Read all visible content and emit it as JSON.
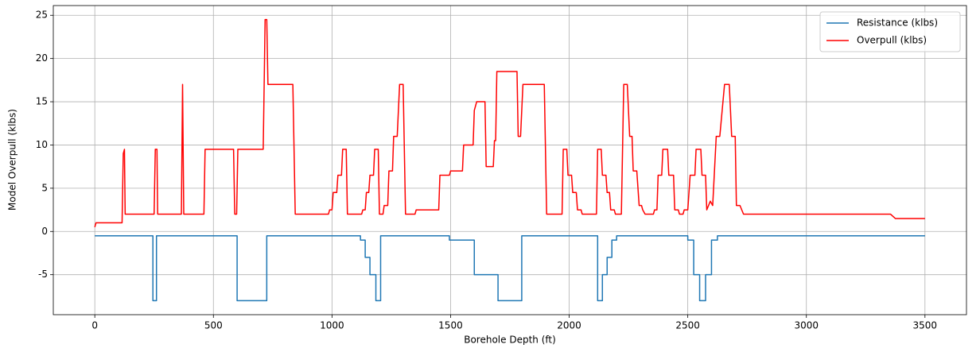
{
  "chart_data": {
    "type": "line",
    "xlabel": "Borehole Depth (ft)",
    "ylabel": "Model Overpull (klbs)",
    "xlim": [
      -175,
      3675
    ],
    "ylim": [
      -9.625,
      26.125
    ],
    "xticks": [
      0,
      500,
      1000,
      1500,
      2000,
      2500,
      3000,
      3500
    ],
    "yticks": [
      -5,
      0,
      5,
      10,
      15,
      20,
      25
    ],
    "grid": true,
    "legend": "upper right",
    "series": [
      {
        "name": "Resistance (klbs)",
        "color": "#1f77b4",
        "x": [
          0,
          245,
          245,
          260,
          260,
          600,
          600,
          725,
          725,
          1120,
          1120,
          1140,
          1140,
          1160,
          1160,
          1185,
          1185,
          1205,
          1205,
          1495,
          1495,
          1600,
          1600,
          1700,
          1700,
          1800,
          1800,
          2120,
          2120,
          2140,
          2140,
          2160,
          2160,
          2180,
          2180,
          2200,
          2200,
          2500,
          2500,
          2525,
          2525,
          2550,
          2550,
          2575,
          2575,
          2600,
          2600,
          2625,
          2625,
          3500
        ],
        "values": [
          -0.5,
          -0.5,
          -8,
          -8,
          -0.5,
          -0.5,
          -8,
          -8,
          -0.5,
          -0.5,
          -1,
          -1,
          -3,
          -3,
          -5,
          -5,
          -8,
          -8,
          -0.5,
          -0.5,
          -1,
          -1,
          -5,
          -5,
          -8,
          -8,
          -0.5,
          -0.5,
          -8,
          -8,
          -5,
          -5,
          -3,
          -3,
          -1,
          -1,
          -0.5,
          -0.5,
          -1,
          -1,
          -5,
          -5,
          -8,
          -8,
          -5,
          -5,
          -1,
          -1,
          -0.5,
          -0.5
        ]
      },
      {
        "name": "Overpull (klbs)",
        "color": "#ff0000",
        "x": [
          0,
          5,
          115,
          120,
          125,
          128,
          250,
          255,
          262,
          265,
          365,
          370,
          375,
          460,
          465,
          585,
          590,
          598,
          603,
          710,
          718,
          725,
          730,
          835,
          845,
          985,
          990,
          1000,
          1005,
          1020,
          1025,
          1040,
          1045,
          1060,
          1065,
          1125,
          1130,
          1140,
          1145,
          1155,
          1160,
          1175,
          1180,
          1195,
          1200,
          1215,
          1220,
          1235,
          1240,
          1255,
          1260,
          1275,
          1285,
          1300,
          1310,
          1350,
          1355,
          1450,
          1455,
          1495,
          1500,
          1550,
          1555,
          1595,
          1600,
          1610,
          1645,
          1650,
          1680,
          1685,
          1690,
          1695,
          1780,
          1785,
          1795,
          1805,
          1895,
          1905,
          1970,
          1975,
          1990,
          1995,
          2010,
          2015,
          2030,
          2035,
          2050,
          2055,
          2115,
          2120,
          2135,
          2140,
          2155,
          2160,
          2170,
          2175,
          2190,
          2195,
          2220,
          2230,
          2245,
          2255,
          2265,
          2270,
          2285,
          2295,
          2305,
          2310,
          2320,
          2355,
          2360,
          2370,
          2375,
          2390,
          2395,
          2415,
          2420,
          2440,
          2445,
          2460,
          2465,
          2480,
          2485,
          2500,
          2510,
          2530,
          2535,
          2555,
          2560,
          2575,
          2580,
          2595,
          2605,
          2620,
          2635,
          2645,
          2655,
          2675,
          2685,
          2700,
          2705,
          2720,
          2735,
          3355,
          3375,
          3500
        ],
        "values": [
          0.5,
          1,
          1,
          9,
          9.5,
          2,
          2,
          9.5,
          9.5,
          2,
          2,
          17,
          2,
          2,
          9.5,
          9.5,
          2,
          2,
          9.5,
          9.5,
          24.5,
          24.5,
          17,
          17,
          2,
          2,
          2.5,
          2.5,
          4.5,
          4.5,
          6.5,
          6.5,
          9.5,
          9.5,
          2,
          2,
          2.5,
          2.5,
          4.5,
          4.5,
          6.5,
          6.5,
          9.5,
          9.5,
          2,
          2,
          3,
          3,
          7,
          7,
          11,
          11,
          17,
          17,
          2,
          2,
          2.5,
          2.5,
          6.5,
          6.5,
          7,
          7,
          10,
          10,
          14,
          15,
          15,
          7.5,
          7.5,
          10.5,
          10.5,
          18.5,
          18.5,
          11,
          11,
          17,
          17,
          2,
          2,
          9.5,
          9.5,
          6.5,
          6.5,
          4.5,
          4.5,
          2.5,
          2.5,
          2,
          2,
          9.5,
          9.5,
          6.5,
          6.5,
          4.5,
          4.5,
          2.5,
          2.5,
          2,
          2,
          17,
          17,
          11,
          11,
          7,
          7,
          3,
          3,
          2.5,
          2,
          2,
          2.5,
          2.5,
          6.5,
          6.5,
          9.5,
          9.5,
          6.5,
          6.5,
          2.5,
          2.5,
          2,
          2,
          2.5,
          2.5,
          6.5,
          6.5,
          9.5,
          9.5,
          6.5,
          6.5,
          2.5,
          3.5,
          3,
          11,
          11,
          14,
          17,
          17,
          11,
          11,
          3,
          3,
          2,
          2,
          1.5,
          1.5
        ]
      }
    ]
  }
}
